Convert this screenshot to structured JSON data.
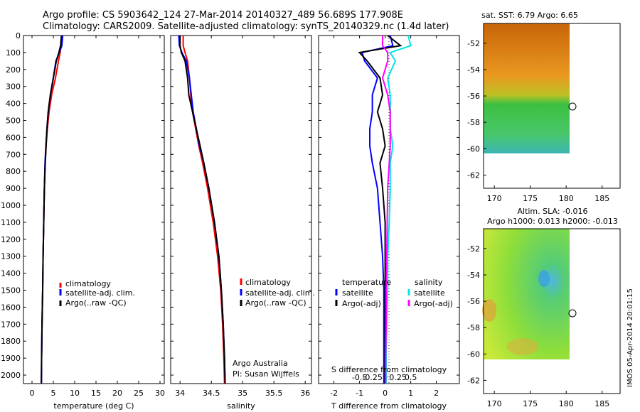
{
  "header": {
    "line1": "Argo profile: CS 5903642_124 27-Mar-2014 20140327_489 56.689S 177.908E",
    "line2": "Climatology: CARS2009. Satellite-adjusted climatology: synTS_20140329.nc (1.4d later)"
  },
  "depth_ticks": [
    "0",
    "100",
    "200",
    "300",
    "400",
    "500",
    "600",
    "700",
    "800",
    "900",
    "1000",
    "1100",
    "1200",
    "1300",
    "1400",
    "1500",
    "1600",
    "1700",
    "1800",
    "1900",
    "2000"
  ],
  "colors": {
    "climatology": "#ff0000",
    "satellite": "#0000ff",
    "argo": "#000000",
    "sal_satellite": "#00e5e5",
    "sal_argo": "#ff00ff"
  },
  "chart_data": [
    {
      "type": "line",
      "xlabel": "temperature (deg C)",
      "ylabel": "",
      "xlim": [
        -2,
        31
      ],
      "ylim": [
        2050,
        0
      ],
      "x_ticks": [
        "0",
        "5",
        "10",
        "15",
        "20",
        "25",
        "30"
      ],
      "legend": [
        "climatology",
        "satellite-adj. clim.",
        "Argo(..raw -QC)"
      ],
      "legend_position": "lower-middle",
      "series": [
        {
          "name": "climatology",
          "points": [
            [
              7,
              0
            ],
            [
              6.8,
              60
            ],
            [
              6.6,
              100
            ],
            [
              6.2,
              150
            ],
            [
              5.5,
              250
            ],
            [
              4.6,
              350
            ],
            [
              4.0,
              450
            ],
            [
              3.6,
              550
            ],
            [
              3.3,
              650
            ],
            [
              3.1,
              750
            ],
            [
              2.9,
              900
            ],
            [
              2.75,
              1100
            ],
            [
              2.6,
              1300
            ],
            [
              2.5,
              1500
            ],
            [
              2.35,
              1700
            ],
            [
              2.25,
              1900
            ],
            [
              2.2,
              2050
            ]
          ]
        },
        {
          "name": "satellite-adj. clim.",
          "points": [
            [
              7.2,
              0
            ],
            [
              7.0,
              60
            ],
            [
              6.4,
              100
            ],
            [
              5.6,
              150
            ],
            [
              5.0,
              250
            ],
            [
              4.3,
              350
            ],
            [
              3.8,
              450
            ],
            [
              3.5,
              550
            ],
            [
              3.25,
              650
            ],
            [
              3.05,
              750
            ],
            [
              2.9,
              900
            ],
            [
              2.75,
              1100
            ],
            [
              2.6,
              1300
            ],
            [
              2.5,
              1500
            ],
            [
              2.35,
              1700
            ],
            [
              2.25,
              1900
            ],
            [
              2.2,
              2050
            ]
          ]
        },
        {
          "name": "Argo(..raw -QC)",
          "points": [
            [
              6.9,
              0
            ],
            [
              6.7,
              60
            ],
            [
              6.3,
              100
            ],
            [
              5.7,
              150
            ],
            [
              5.0,
              250
            ],
            [
              4.3,
              350
            ],
            [
              3.8,
              450
            ],
            [
              3.5,
              550
            ],
            [
              3.3,
              650
            ],
            [
              3.1,
              750
            ],
            [
              2.9,
              900
            ],
            [
              2.75,
              1100
            ],
            [
              2.6,
              1300
            ],
            [
              2.5,
              1500
            ],
            [
              2.35,
              1700
            ],
            [
              2.25,
              1900
            ],
            [
              2.2,
              2050
            ]
          ]
        }
      ]
    },
    {
      "type": "line",
      "xlabel": "salinity",
      "ylabel": "",
      "xlim": [
        33.85,
        36.1
      ],
      "ylim": [
        2050,
        0
      ],
      "x_ticks": [
        "34",
        "34.5",
        "35",
        "35.5",
        "36"
      ],
      "legend": [
        "climatology",
        "satellite-adj. clim.",
        "Argo(..raw -QC)"
      ],
      "legend_position": "lower-middle",
      "annotations": [
        "Argo Australia",
        "PI: Susan Wijffels"
      ],
      "series": [
        {
          "name": "climatology",
          "points": [
            [
              34.05,
              0
            ],
            [
              34.05,
              60
            ],
            [
              34.08,
              100
            ],
            [
              34.12,
              150
            ],
            [
              34.15,
              250
            ],
            [
              34.17,
              350
            ],
            [
              34.2,
              450
            ],
            [
              34.25,
              550
            ],
            [
              34.3,
              650
            ],
            [
              34.36,
              750
            ],
            [
              34.44,
              900
            ],
            [
              34.53,
              1100
            ],
            [
              34.6,
              1300
            ],
            [
              34.65,
              1500
            ],
            [
              34.68,
              1700
            ],
            [
              34.7,
              1900
            ],
            [
              34.71,
              2050
            ]
          ]
        },
        {
          "name": "satellite-adj. clim.",
          "points": [
            [
              33.98,
              0
            ],
            [
              33.99,
              60
            ],
            [
              34.03,
              100
            ],
            [
              34.1,
              150
            ],
            [
              34.15,
              250
            ],
            [
              34.18,
              350
            ],
            [
              34.21,
              450
            ],
            [
              34.26,
              550
            ],
            [
              34.31,
              650
            ],
            [
              34.38,
              750
            ],
            [
              34.46,
              900
            ],
            [
              34.55,
              1100
            ],
            [
              34.62,
              1300
            ],
            [
              34.66,
              1500
            ],
            [
              34.69,
              1700
            ],
            [
              34.71,
              1900
            ],
            [
              34.72,
              2050
            ]
          ]
        },
        {
          "name": "Argo(..raw -QC)",
          "points": [
            [
              34.0,
              0
            ],
            [
              34.0,
              60
            ],
            [
              34.02,
              100
            ],
            [
              34.08,
              150
            ],
            [
              34.12,
              250
            ],
            [
              34.14,
              350
            ],
            [
              34.2,
              450
            ],
            [
              34.26,
              550
            ],
            [
              34.32,
              650
            ],
            [
              34.38,
              750
            ],
            [
              34.46,
              900
            ],
            [
              34.55,
              1100
            ],
            [
              34.62,
              1300
            ],
            [
              34.66,
              1500
            ],
            [
              34.69,
              1700
            ],
            [
              34.71,
              1900
            ],
            [
              34.72,
              2050
            ]
          ]
        }
      ]
    },
    {
      "type": "line",
      "xlabel": "T difference from climatology",
      "ylabel": "",
      "top_label": "S difference from climatology",
      "xlim": [
        -2.6,
        2.9
      ],
      "ylim": [
        2050,
        0
      ],
      "x_ticks": [
        "-2",
        "-1",
        "0",
        "1",
        "2"
      ],
      "s_ticks": [
        "-0.5",
        "-0.25",
        "0",
        "0.25",
        "0.5"
      ],
      "legend_temperature_title": "temperature",
      "legend_salinity_title": "salinity",
      "legend": [
        "satellite",
        "Argo(-adj)",
        "satellite",
        "Argo(-adj)"
      ],
      "legend_position": "lower-middle",
      "series": [
        {
          "name": "temperature satellite",
          "points": [
            [
              0.2,
              0
            ],
            [
              0.3,
              60
            ],
            [
              -0.9,
              100
            ],
            [
              -0.8,
              150
            ],
            [
              -0.3,
              250
            ],
            [
              -0.5,
              350
            ],
            [
              -0.5,
              450
            ],
            [
              -0.6,
              550
            ],
            [
              -0.6,
              650
            ],
            [
              -0.5,
              750
            ],
            [
              -0.3,
              900
            ],
            [
              -0.2,
              1100
            ],
            [
              -0.1,
              1300
            ],
            [
              -0.05,
              1500
            ],
            [
              -0.05,
              1700
            ],
            [
              -0.05,
              1900
            ],
            [
              -0.05,
              2050
            ]
          ]
        },
        {
          "name": "temperature Argo(-adj)",
          "points": [
            [
              0.1,
              0
            ],
            [
              0.6,
              60
            ],
            [
              -1.0,
              100
            ],
            [
              -0.7,
              150
            ],
            [
              -0.2,
              250
            ],
            [
              -0.1,
              350
            ],
            [
              -0.3,
              450
            ],
            [
              -0.1,
              550
            ],
            [
              0,
              650
            ],
            [
              -0.2,
              750
            ],
            [
              -0.1,
              900
            ],
            [
              0,
              1100
            ],
            [
              0,
              1300
            ],
            [
              0,
              1500
            ],
            [
              0,
              1700
            ],
            [
              0,
              1900
            ],
            [
              0,
              2050
            ]
          ]
        },
        {
          "name": "salinity satellite",
          "points": [
            [
              0.45,
              0
            ],
            [
              0.5,
              60
            ],
            [
              0.1,
              100
            ],
            [
              0.2,
              150
            ],
            [
              0.05,
              250
            ],
            [
              0.1,
              350
            ],
            [
              0.1,
              450
            ],
            [
              0.1,
              550
            ],
            [
              0.15,
              650
            ],
            [
              0.1,
              750
            ],
            [
              0.1,
              900
            ],
            [
              0.08,
              1100
            ],
            [
              0.05,
              1300
            ],
            [
              0.05,
              1500
            ],
            [
              0.03,
              1700
            ],
            [
              0.02,
              1900
            ],
            [
              0.02,
              2050
            ]
          ]
        },
        {
          "name": "salinity Argo(-adj)",
          "points": [
            [
              -0.05,
              0
            ],
            [
              -0.05,
              60
            ],
            [
              0.05,
              100
            ],
            [
              0.05,
              150
            ],
            [
              -0.05,
              250
            ],
            [
              0.05,
              350
            ],
            [
              0.1,
              450
            ],
            [
              0.1,
              550
            ],
            [
              0.1,
              650
            ],
            [
              0.08,
              750
            ],
            [
              0.05,
              900
            ],
            [
              0.04,
              1100
            ],
            [
              0.03,
              1300
            ],
            [
              0.02,
              1500
            ],
            [
              0.02,
              1700
            ],
            [
              0.01,
              1900
            ],
            [
              0.01,
              2050
            ]
          ]
        }
      ]
    },
    {
      "type": "heatmap",
      "title": "sat. SST: 6.79 Argo: 6.65",
      "xlim": [
        168.5,
        187.5
      ],
      "ylim": [
        -63,
        -50.5
      ],
      "x_ticks": [
        "170",
        "175",
        "180",
        "185"
      ],
      "y_ticks": [
        "-52",
        "-54",
        "-56",
        "-58",
        "-60",
        "-62"
      ],
      "marker": {
        "lon": 177.908,
        "lat": -56.689
      },
      "data_extent": {
        "lon": [
          169,
          180.2
        ],
        "lat": [
          -60,
          -50.5
        ]
      }
    },
    {
      "type": "heatmap",
      "title_line1": "Altim. SLA: -0.016",
      "title_line2": "Argo h1000: 0.013 h2000: -0.013",
      "xlim": [
        168.5,
        187.5
      ],
      "ylim": [
        -63,
        -50.5
      ],
      "x_ticks": [
        "170",
        "175",
        "180",
        "185"
      ],
      "y_ticks": [
        "-52",
        "-54",
        "-56",
        "-58",
        "-60",
        "-62"
      ],
      "marker": {
        "lon": 177.908,
        "lat": -56.689
      },
      "data_extent": {
        "lon": [
          169,
          180.2
        ],
        "lat": [
          -60,
          -50.5
        ]
      }
    }
  ],
  "side_label": "IMOS 05-Apr-2014 20:01:15"
}
